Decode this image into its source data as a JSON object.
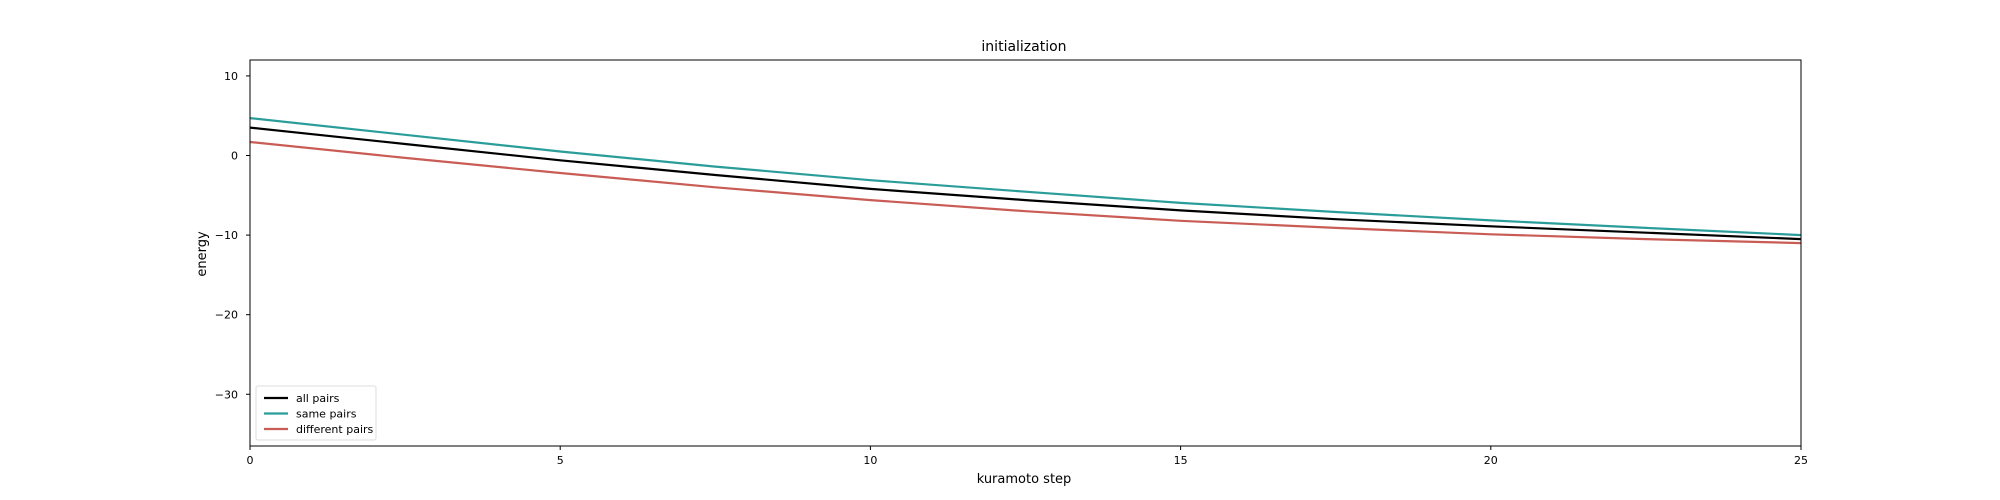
{
  "chart_data": {
    "type": "line",
    "title": "initialization",
    "xlabel": "kuramoto step",
    "ylabel": "energy",
    "xlim": [
      0,
      25
    ],
    "ylim": [
      -36.5,
      12
    ],
    "x_ticks": [
      0,
      5,
      10,
      15,
      20,
      25
    ],
    "y_ticks": [
      10,
      0,
      -10,
      -20,
      -30
    ],
    "y_tick_labels": [
      "10",
      "0",
      "−10",
      "−20",
      "−30"
    ],
    "grid": false,
    "legend_position": "lower-left",
    "series": [
      {
        "name": "all pairs",
        "color": "#000000",
        "x": [
          0,
          2.5,
          5,
          7.5,
          10,
          12.5,
          15,
          17.5,
          20,
          22.5,
          25
        ],
        "y": [
          3.5,
          1.45,
          -0.6,
          -2.45,
          -4.2,
          -5.6,
          -6.9,
          -8.0,
          -8.9,
          -9.7,
          -10.5
        ]
      },
      {
        "name": "same pairs",
        "color": "#2a9d9a",
        "x": [
          0,
          2.5,
          5,
          7.5,
          10,
          12.5,
          15,
          17.5,
          20,
          22.5,
          25
        ],
        "y": [
          4.7,
          2.6,
          0.5,
          -1.4,
          -3.1,
          -4.55,
          -5.95,
          -7.1,
          -8.15,
          -9.1,
          -10.0
        ]
      },
      {
        "name": "different pairs",
        "color": "#c95c55",
        "x": [
          0,
          2.5,
          5,
          7.5,
          10,
          12.5,
          15,
          17.5,
          20,
          22.5,
          25
        ],
        "y": [
          1.7,
          -0.3,
          -2.2,
          -4.0,
          -5.6,
          -7.0,
          -8.2,
          -9.1,
          -9.9,
          -10.5,
          -11.0
        ]
      }
    ]
  }
}
